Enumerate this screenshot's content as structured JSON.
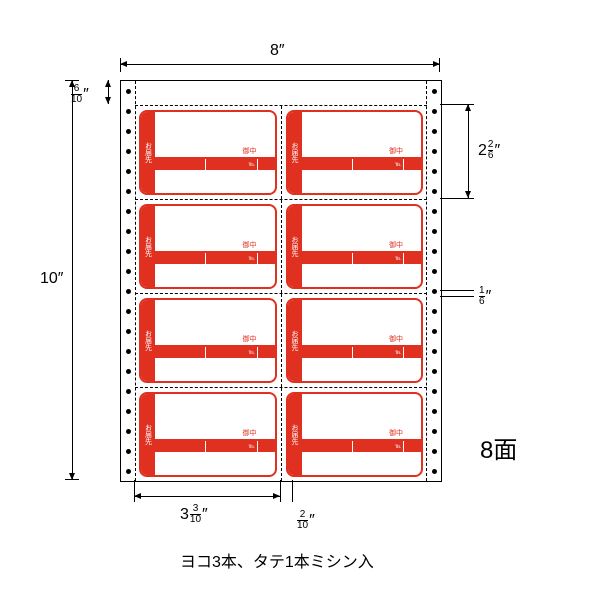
{
  "layout": {
    "sheet_w_in": "8″",
    "sheet_h_in": "10″",
    "top_margin": {
      "num": "6",
      "den": "10",
      "suffix": "″"
    },
    "label_h": {
      "whole": "2",
      "num": "2",
      "den": "6",
      "suffix": "″"
    },
    "row_gap": {
      "num": "1",
      "den": "6",
      "suffix": "″"
    },
    "label_w": {
      "whole": "3",
      "num": "3",
      "den": "10",
      "suffix": "″"
    },
    "col_gap": {
      "num": "2",
      "den": "10",
      "suffix": "″"
    },
    "perf_holes_per_side": 20,
    "rows": 4,
    "cols": 2
  },
  "label_text": {
    "tab": "お届先",
    "mid": "御中",
    "band_tel": "℡",
    "band_sender": "発送人"
  },
  "face_count": "8面",
  "bottom_note": "ヨコ3本、タテ1本ミシン入",
  "colors": {
    "red": "#e03020",
    "line": "#000000",
    "bg": "#ffffff"
  }
}
